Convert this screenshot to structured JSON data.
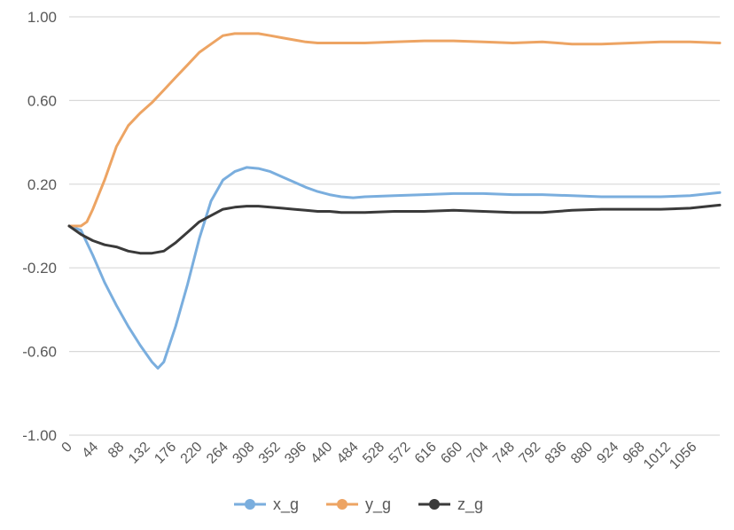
{
  "chart_data": {
    "type": "line",
    "title": "",
    "xlabel": "",
    "ylabel": "",
    "ylim": [
      -1.0,
      1.0
    ],
    "xlim": [
      0,
      1100
    ],
    "y_ticks": [
      1.0,
      0.6,
      0.2,
      -0.2,
      -0.6,
      -1.0
    ],
    "y_tick_labels": [
      "1.00",
      "0.60",
      "0.20",
      "-0.20",
      "-0.60",
      "-1.00"
    ],
    "x_ticks": [
      0,
      44,
      88,
      132,
      176,
      220,
      264,
      308,
      352,
      396,
      440,
      484,
      528,
      572,
      616,
      660,
      704,
      748,
      792,
      836,
      880,
      924,
      968,
      1012,
      1056
    ],
    "x_tick_labels": [
      "0",
      "44",
      "88",
      "132",
      "176",
      "220",
      "264",
      "308",
      "352",
      "396",
      "440",
      "484",
      "528",
      "572",
      "616",
      "660",
      "704",
      "748",
      "792",
      "836",
      "880",
      "924",
      "968",
      "1012",
      "1056"
    ],
    "grid": "horizontal",
    "legend_position": "bottom",
    "series": [
      {
        "name": "x_g",
        "color": "#7aaede",
        "x": [
          0,
          20,
          40,
          60,
          80,
          100,
          120,
          140,
          150,
          160,
          180,
          200,
          220,
          240,
          260,
          280,
          300,
          320,
          340,
          360,
          380,
          400,
          420,
          440,
          460,
          480,
          500,
          550,
          600,
          650,
          700,
          750,
          800,
          850,
          900,
          950,
          1000,
          1050,
          1100
        ],
        "y": [
          0.0,
          -0.02,
          -0.14,
          -0.27,
          -0.38,
          -0.48,
          -0.57,
          -0.65,
          -0.68,
          -0.65,
          -0.48,
          -0.28,
          -0.06,
          0.12,
          0.22,
          0.26,
          0.28,
          0.275,
          0.26,
          0.235,
          0.21,
          0.185,
          0.165,
          0.15,
          0.14,
          0.135,
          0.14,
          0.145,
          0.15,
          0.155,
          0.155,
          0.15,
          0.15,
          0.145,
          0.14,
          0.14,
          0.14,
          0.145,
          0.16
        ]
      },
      {
        "name": "y_g",
        "color": "#eda463",
        "x": [
          0,
          20,
          30,
          40,
          60,
          80,
          100,
          120,
          140,
          160,
          180,
          200,
          220,
          240,
          260,
          280,
          300,
          320,
          340,
          360,
          380,
          400,
          420,
          440,
          460,
          480,
          500,
          550,
          600,
          650,
          700,
          750,
          800,
          850,
          900,
          950,
          1000,
          1050,
          1100
        ],
        "y": [
          0.0,
          0.0,
          0.02,
          0.08,
          0.22,
          0.38,
          0.48,
          0.54,
          0.59,
          0.65,
          0.71,
          0.77,
          0.83,
          0.87,
          0.91,
          0.92,
          0.92,
          0.92,
          0.91,
          0.9,
          0.89,
          0.88,
          0.875,
          0.875,
          0.875,
          0.875,
          0.875,
          0.88,
          0.885,
          0.885,
          0.88,
          0.875,
          0.88,
          0.87,
          0.87,
          0.875,
          0.88,
          0.88,
          0.875
        ]
      },
      {
        "name": "z_g",
        "color": "#3a3a3a",
        "x": [
          0,
          20,
          40,
          60,
          80,
          100,
          120,
          140,
          160,
          180,
          200,
          220,
          240,
          260,
          280,
          300,
          320,
          340,
          360,
          380,
          400,
          420,
          440,
          460,
          480,
          500,
          550,
          600,
          650,
          700,
          750,
          800,
          850,
          900,
          950,
          1000,
          1050,
          1100
        ],
        "y": [
          0.0,
          -0.04,
          -0.07,
          -0.09,
          -0.1,
          -0.12,
          -0.13,
          -0.13,
          -0.12,
          -0.08,
          -0.03,
          0.02,
          0.05,
          0.08,
          0.09,
          0.095,
          0.095,
          0.09,
          0.085,
          0.08,
          0.075,
          0.07,
          0.07,
          0.065,
          0.065,
          0.065,
          0.07,
          0.07,
          0.075,
          0.07,
          0.065,
          0.065,
          0.075,
          0.08,
          0.08,
          0.08,
          0.085,
          0.1
        ]
      }
    ]
  }
}
